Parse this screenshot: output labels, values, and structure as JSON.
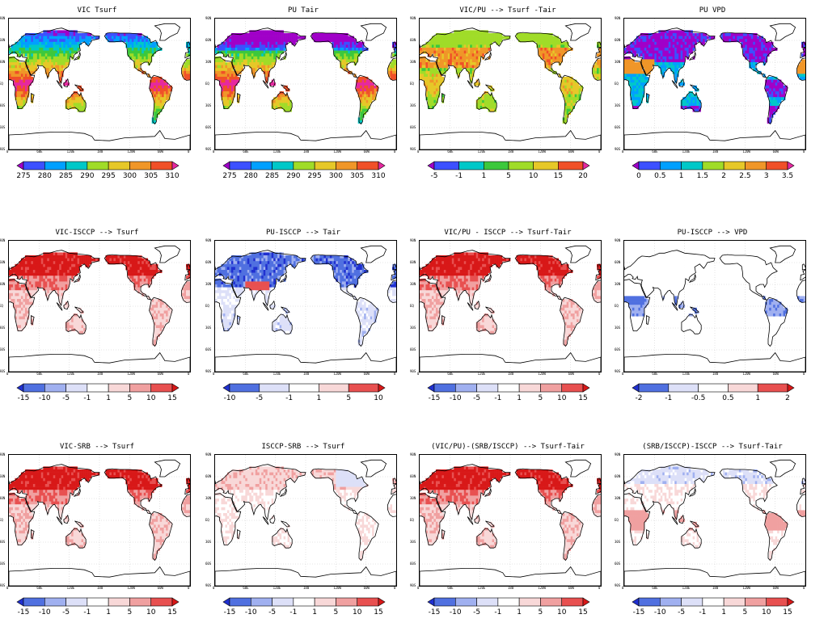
{
  "ylabels": [
    "90N",
    "60N",
    "30N",
    "EQ",
    "30S",
    "60S",
    "90S"
  ],
  "xlabels": [
    "0",
    "60E",
    "120E",
    "180",
    "120W",
    "60W",
    "0"
  ],
  "colors": {
    "rainbow": [
      "#a000c8",
      "#3c50ff",
      "#00a0ff",
      "#00c8c8",
      "#3cc83c",
      "#a0dc28",
      "#e6c828",
      "#f09628",
      "#f05028",
      "#e628a0"
    ],
    "anomaly": [
      "#2030d0",
      "#5070e0",
      "#a0b0f0",
      "#dde0f8",
      "#ffffff",
      "#f8d8d8",
      "#f0a0a0",
      "#e85050",
      "#d81818"
    ]
  },
  "panels": [
    {
      "title": "VIC Tsurf",
      "palette": "rainbow",
      "ticks": [
        "275",
        "280",
        "285",
        "290",
        "295",
        "300",
        "305",
        "310"
      ],
      "style": "temp"
    },
    {
      "title": "PU Tair",
      "palette": "rainbow",
      "ticks": [
        "275",
        "280",
        "285",
        "290",
        "295",
        "300",
        "305",
        "310"
      ],
      "style": "temp"
    },
    {
      "title": "VIC/PU --> Tsurf -Tair",
      "palette": "rainbow",
      "ticks": [
        "-5",
        "-1",
        "1",
        "5",
        "10",
        "15",
        "20"
      ],
      "style": "diff"
    },
    {
      "title": "PU VPD",
      "palette": "rainbow",
      "ticks": [
        "0",
        "0.5",
        "1",
        "1.5",
        "2",
        "2.5",
        "3",
        "3.5"
      ],
      "style": "vpd"
    },
    {
      "title": "VIC-ISCCP --> Tsurf",
      "palette": "anomaly",
      "ticks": [
        "-15",
        "-10",
        "-5",
        "-1",
        "1",
        "5",
        "10",
        "15"
      ],
      "style": "warm"
    },
    {
      "title": "PU-ISCCP --> Tair",
      "palette": "anomaly",
      "ticks": [
        "-10",
        "-5",
        "-1",
        "1",
        "5",
        "10"
      ],
      "style": "cold"
    },
    {
      "title": "VIC/PU - ISCCP --> Tsurf-Tair",
      "palette": "anomaly",
      "ticks": [
        "-15",
        "-10",
        "-5",
        "-1",
        "1",
        "5",
        "10",
        "15"
      ],
      "style": "warm"
    },
    {
      "title": "PU-ISCCP --> VPD",
      "palette": "anomaly",
      "ticks": [
        "-2",
        "-1",
        "-0.5",
        "0.5",
        "1",
        "2"
      ],
      "style": "tropics"
    },
    {
      "title": "VIC-SRB --> Tsurf",
      "palette": "anomaly",
      "ticks": [
        "-15",
        "-10",
        "-5",
        "-1",
        "1",
        "5",
        "10",
        "15"
      ],
      "style": "warm"
    },
    {
      "title": "ISCCP-SRB --> Tsurf",
      "palette": "anomaly",
      "ticks": [
        "-15",
        "-10",
        "-5",
        "-1",
        "1",
        "5",
        "10",
        "15"
      ],
      "style": "mild"
    },
    {
      "title": "(VIC/PU)-(SRB/ISCCP) --> Tsurf-Tair",
      "palette": "anomaly",
      "ticks": [
        "-15",
        "-10",
        "-5",
        "-1",
        "1",
        "5",
        "10",
        "15"
      ],
      "style": "warm"
    },
    {
      "title": "(SRB/ISCCP)-ISCCP --> Tsurf-Tair",
      "palette": "anomaly",
      "ticks": [
        "-15",
        "-10",
        "-5",
        "-1",
        "1",
        "5",
        "10",
        "15"
      ],
      "style": "mixed"
    }
  ]
}
